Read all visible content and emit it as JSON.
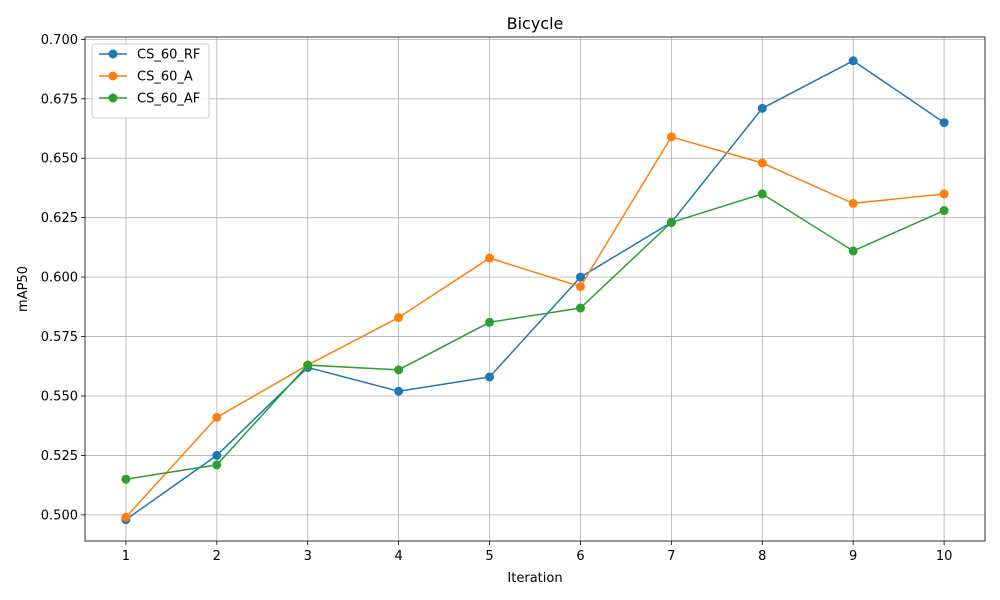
{
  "chart_data": {
    "type": "line",
    "title": "Bicycle",
    "xlabel": "Iteration",
    "ylabel": "mAP50",
    "x": [
      1,
      2,
      3,
      4,
      5,
      6,
      7,
      8,
      9,
      10
    ],
    "xticks": [
      "1",
      "2",
      "3",
      "4",
      "5",
      "6",
      "7",
      "8",
      "9",
      "10"
    ],
    "yticks": [
      "0.500",
      "0.525",
      "0.550",
      "0.575",
      "0.600",
      "0.625",
      "0.650",
      "0.675",
      "0.700"
    ],
    "ylim": [
      0.489,
      0.701
    ],
    "xlim": [
      0.55,
      10.45
    ],
    "grid": true,
    "legend_position": "upper-left",
    "series": [
      {
        "name": "CS_60_RF",
        "color": "#1f77b4",
        "values": [
          0.498,
          0.525,
          0.562,
          0.552,
          0.558,
          0.6,
          0.623,
          0.671,
          0.691,
          0.665
        ]
      },
      {
        "name": "CS_60_A",
        "color": "#ff7f0e",
        "values": [
          0.499,
          0.541,
          0.563,
          0.583,
          0.608,
          0.596,
          0.659,
          0.648,
          0.631,
          0.635
        ]
      },
      {
        "name": "CS_60_AF",
        "color": "#2ca02c",
        "values": [
          0.515,
          0.521,
          0.563,
          0.561,
          0.581,
          0.587,
          0.623,
          0.635,
          0.611,
          0.628
        ]
      }
    ]
  }
}
